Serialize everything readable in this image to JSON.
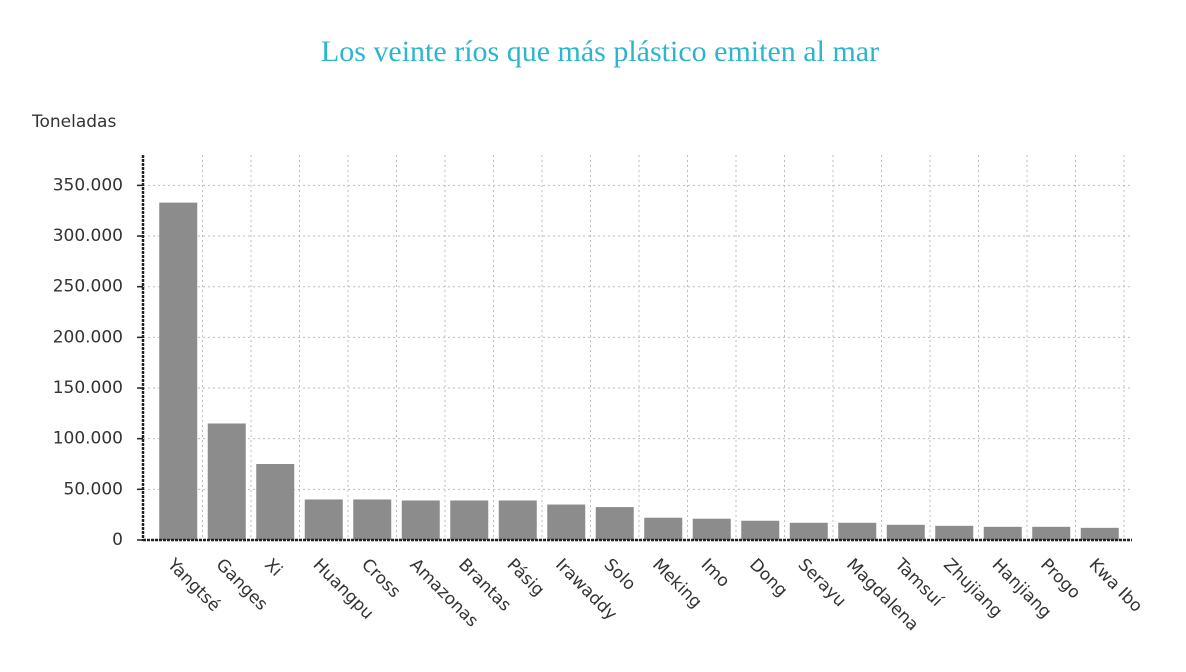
{
  "chart_data": {
    "type": "bar",
    "title": "Los veinte ríos que más plástico emiten al mar",
    "y_axis_label": "Toneladas",
    "categories": [
      "Yangtsé",
      "Ganges",
      "Xi",
      "Huangpu",
      "Cross",
      "Amazonas",
      "Brantas",
      "Pásig",
      "Irawaddy",
      "Solo",
      "Meking",
      "Imo",
      "Dong",
      "Serayu",
      "Magdalena",
      "Tamsuí",
      "Zhujiang",
      "Hanjiang",
      "Progo",
      "Kwa Ibo"
    ],
    "values": [
      333000,
      115000,
      75000,
      40000,
      40000,
      39000,
      39000,
      39000,
      35000,
      32500,
      22000,
      21000,
      19000,
      17000,
      17000,
      15000,
      14000,
      13000,
      13000,
      12000
    ],
    "color": "#8c8c8c",
    "ylim": [
      0,
      380000
    ],
    "yticks": [
      0,
      {
        "value": 50000,
        "label": "50.000"
      },
      {
        "value": 100000,
        "label": "100.000"
      },
      {
        "value": 150000,
        "label": "150.000"
      },
      {
        "value": 200000,
        "label": "200.000"
      },
      {
        "value": 250000,
        "label": "250.000"
      },
      {
        "value": 300000,
        "label": "300.000"
      },
      {
        "value": 350000,
        "label": "350.000"
      }
    ],
    "grid": true
  }
}
